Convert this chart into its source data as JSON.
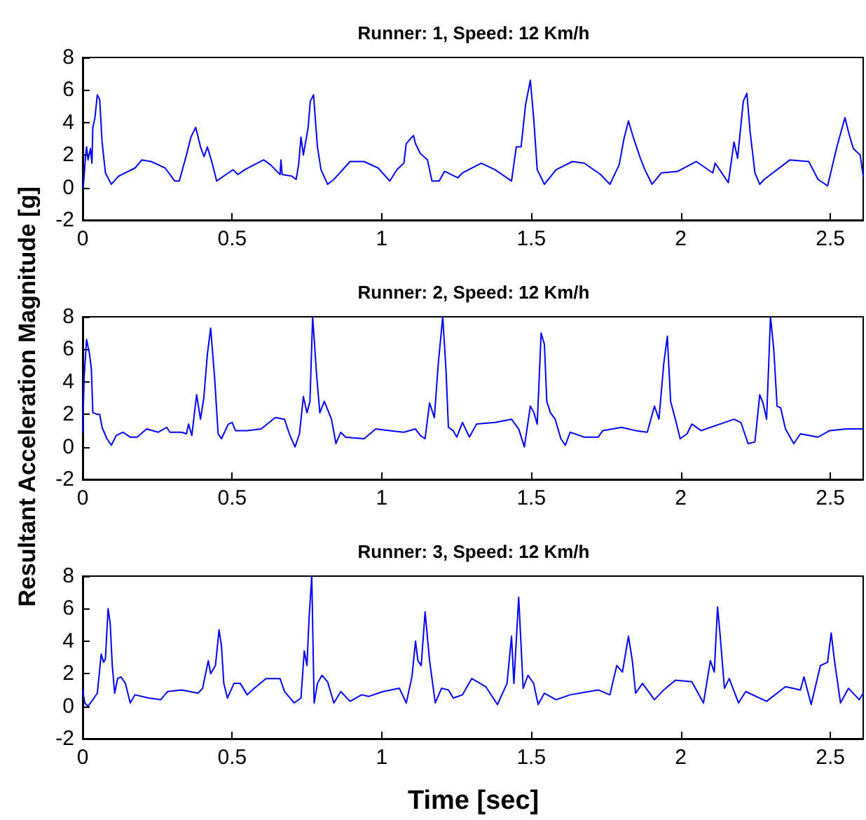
{
  "chart_data": [
    {
      "type": "line",
      "title": "Runner: 1, Speed: 12 Km/h",
      "ylabel": "Resultant Acceleration Magnitude [g]",
      "xlim": [
        0,
        2.61
      ],
      "xticks": [
        0,
        0.5,
        1,
        1.5,
        2,
        2.5
      ],
      "ylim": [
        -2,
        8
      ],
      "yticks": [
        -2,
        0,
        2,
        4,
        6,
        8
      ],
      "grid": false,
      "marker": "none",
      "line_style": "solid",
      "series": [
        {
          "color": "#0000ff",
          "x": [
            0.002,
            0.01,
            0.013,
            0.018,
            0.026,
            0.031,
            0.034,
            0.041,
            0.049,
            0.057,
            0.065,
            0.076,
            0.096,
            0.12,
            0.175,
            0.198,
            0.229,
            0.253,
            0.276,
            0.308,
            0.323,
            0.347,
            0.362,
            0.378,
            0.394,
            0.406,
            0.417,
            0.433,
            0.448,
            0.487,
            0.503,
            0.519,
            0.542,
            0.605,
            0.628,
            0.66,
            0.663,
            0.667,
            0.699,
            0.714,
            0.722,
            0.73,
            0.738,
            0.754,
            0.761,
            0.772,
            0.785,
            0.797,
            0.819,
            0.84,
            0.894,
            0.941,
            0.988,
            1.027,
            1.051,
            1.074,
            1.082,
            1.106,
            1.113,
            1.129,
            1.153,
            1.168,
            1.192,
            1.21,
            1.254,
            1.27,
            1.333,
            1.379,
            1.434,
            1.45,
            1.466,
            1.481,
            1.497,
            1.508,
            1.52,
            1.544,
            1.583,
            1.638,
            1.677,
            1.732,
            1.763,
            1.794,
            1.81,
            1.825,
            1.841,
            1.865,
            1.88,
            1.904,
            1.935,
            1.99,
            2.052,
            2.107,
            2.115,
            2.159,
            2.178,
            2.19,
            2.209,
            2.221,
            2.232,
            2.248,
            2.264,
            2.279,
            2.365,
            2.428,
            2.459,
            2.491,
            2.522,
            2.549,
            2.561,
            2.577,
            2.6,
            2.61
          ],
          "values": [
            0.0,
            2.0,
            2.5,
            1.7,
            2.4,
            1.5,
            3.7,
            4.3,
            5.7,
            5.4,
            2.8,
            0.9,
            0.2,
            0.7,
            1.2,
            1.7,
            1.6,
            1.4,
            1.2,
            0.4,
            0.4,
            2.0,
            3.1,
            3.7,
            2.5,
            1.9,
            2.5,
            1.5,
            0.4,
            0.9,
            1.1,
            0.8,
            1.1,
            1.7,
            1.4,
            0.8,
            1.7,
            0.8,
            0.7,
            0.5,
            1.4,
            3.1,
            2.0,
            3.7,
            5.3,
            5.7,
            2.5,
            1.1,
            0.2,
            0.5,
            1.6,
            1.6,
            1.2,
            0.4,
            1.1,
            1.5,
            2.7,
            3.2,
            2.7,
            2.1,
            1.7,
            0.4,
            0.4,
            1.0,
            0.6,
            0.9,
            1.5,
            1.1,
            0.4,
            2.5,
            2.5,
            5.1,
            6.6,
            4.3,
            1.1,
            0.2,
            1.1,
            1.6,
            1.5,
            0.8,
            0.2,
            1.4,
            3.0,
            4.1,
            3.1,
            1.8,
            1.1,
            0.2,
            0.9,
            1.0,
            1.6,
            0.9,
            1.5,
            0.3,
            2.8,
            1.8,
            5.3,
            5.8,
            3.4,
            0.9,
            0.2,
            0.5,
            1.7,
            1.6,
            0.5,
            0.1,
            2.5,
            4.3,
            3.4,
            2.4,
            2.0,
            0.7
          ]
        }
      ]
    },
    {
      "type": "line",
      "title": "Runner: 2, Speed: 12 Km/h",
      "xlim": [
        0,
        2.61
      ],
      "xticks": [
        0,
        0.5,
        1,
        1.5,
        2,
        2.5
      ],
      "ylim": [
        -2,
        8
      ],
      "yticks": [
        -2,
        0,
        2,
        4,
        6,
        8
      ],
      "grid": false,
      "marker": "none",
      "line_style": "solid",
      "series": [
        {
          "color": "#0000ff",
          "x": [
            0.0,
            0.005,
            0.013,
            0.023,
            0.029,
            0.034,
            0.049,
            0.057,
            0.065,
            0.081,
            0.096,
            0.112,
            0.135,
            0.159,
            0.182,
            0.214,
            0.253,
            0.281,
            0.292,
            0.331,
            0.347,
            0.354,
            0.365,
            0.381,
            0.394,
            0.405,
            0.417,
            0.428,
            0.441,
            0.453,
            0.464,
            0.487,
            0.5,
            0.511,
            0.55,
            0.597,
            0.644,
            0.675,
            0.691,
            0.71,
            0.725,
            0.738,
            0.75,
            0.76,
            0.769,
            0.782,
            0.793,
            0.808,
            0.832,
            0.847,
            0.863,
            0.879,
            0.941,
            0.98,
            1.027,
            1.074,
            1.113,
            1.129,
            1.145,
            1.16,
            1.176,
            1.189,
            1.204,
            1.215,
            1.223,
            1.239,
            1.251,
            1.27,
            1.293,
            1.317,
            1.379,
            1.434,
            1.458,
            1.477,
            1.497,
            1.509,
            1.52,
            1.533,
            1.544,
            1.552,
            1.564,
            1.58,
            1.599,
            1.614,
            1.63,
            1.677,
            1.724,
            1.739,
            1.802,
            1.849,
            1.888,
            1.912,
            1.927,
            1.943,
            1.955,
            1.966,
            1.982,
            1.998,
            2.021,
            2.037,
            2.068,
            2.131,
            2.178,
            2.201,
            2.225,
            2.248,
            2.264,
            2.275,
            2.287,
            2.3,
            2.311,
            2.322,
            2.334,
            2.35,
            2.378,
            2.4,
            2.459,
            2.498,
            2.553,
            2.61
          ],
          "values": [
            0.9,
            4.3,
            6.6,
            5.7,
            4.8,
            2.1,
            2.0,
            2.0,
            1.2,
            0.5,
            0.1,
            0.7,
            0.9,
            0.6,
            0.6,
            1.1,
            0.9,
            1.2,
            0.9,
            0.9,
            0.8,
            1.4,
            0.7,
            3.2,
            1.7,
            3.0,
            5.7,
            7.3,
            4.3,
            0.8,
            0.5,
            1.4,
            1.5,
            1.0,
            1.0,
            1.1,
            1.8,
            1.7,
            0.8,
            0.0,
            0.8,
            3.1,
            2.1,
            2.8,
            8.0,
            4.5,
            2.1,
            2.8,
            1.7,
            0.2,
            0.9,
            0.6,
            0.5,
            1.1,
            1.0,
            0.9,
            1.1,
            0.7,
            0.5,
            2.7,
            1.8,
            5.1,
            8.0,
            4.7,
            1.2,
            1.0,
            0.6,
            1.5,
            0.6,
            1.4,
            1.5,
            1.7,
            1.1,
            0.0,
            2.5,
            2.1,
            1.4,
            7.0,
            6.3,
            2.8,
            2.1,
            1.7,
            0.5,
            0.1,
            0.9,
            0.6,
            0.6,
            1.0,
            1.2,
            1.0,
            0.9,
            2.5,
            1.7,
            5.1,
            6.8,
            2.8,
            1.7,
            0.5,
            0.8,
            1.4,
            1.0,
            1.4,
            1.7,
            1.5,
            0.2,
            0.3,
            3.2,
            2.7,
            1.7,
            8.0,
            6.0,
            2.5,
            2.4,
            1.1,
            0.2,
            0.8,
            0.6,
            1.0,
            1.1,
            1.1
          ]
        }
      ]
    },
    {
      "type": "line",
      "title": "Runner: 3, Speed: 12 Km/h",
      "xlabel": "Time [sec]",
      "xlim": [
        0,
        2.61
      ],
      "xticks": [
        0,
        0.5,
        1,
        1.5,
        2,
        2.5
      ],
      "ylim": [
        -2,
        8
      ],
      "yticks": [
        -2,
        0,
        2,
        4,
        6,
        8
      ],
      "grid": false,
      "marker": "none",
      "line_style": "solid",
      "series": [
        {
          "color": "#0000ff",
          "x": [
            0.0,
            0.007,
            0.018,
            0.034,
            0.049,
            0.062,
            0.07,
            0.076,
            0.085,
            0.092,
            0.099,
            0.107,
            0.117,
            0.128,
            0.143,
            0.159,
            0.175,
            0.221,
            0.261,
            0.284,
            0.331,
            0.386,
            0.401,
            0.42,
            0.428,
            0.444,
            0.456,
            0.464,
            0.472,
            0.484,
            0.506,
            0.527,
            0.55,
            0.574,
            0.613,
            0.66,
            0.675,
            0.707,
            0.73,
            0.741,
            0.75,
            0.757,
            0.766,
            0.774,
            0.785,
            0.8,
            0.819,
            0.84,
            0.863,
            0.894,
            0.933,
            0.957,
            1.004,
            1.059,
            1.082,
            1.101,
            1.113,
            1.121,
            1.132,
            1.145,
            1.16,
            1.179,
            1.2,
            1.223,
            1.239,
            1.27,
            1.301,
            1.348,
            1.387,
            1.419,
            1.434,
            1.442,
            1.458,
            1.473,
            1.489,
            1.508,
            1.523,
            1.544,
            1.583,
            1.63,
            1.692,
            1.724,
            1.763,
            1.786,
            1.805,
            1.825,
            1.838,
            1.849,
            1.872,
            1.912,
            1.943,
            1.982,
            2.037,
            2.076,
            2.099,
            2.112,
            2.123,
            2.131,
            2.146,
            2.162,
            2.193,
            2.217,
            2.287,
            2.35,
            2.4,
            2.412,
            2.436,
            2.467,
            2.491,
            2.503,
            2.514,
            2.534,
            2.561,
            2.597,
            2.61
          ],
          "values": [
            1.0,
            0.2,
            0.0,
            0.4,
            0.8,
            3.2,
            2.7,
            2.9,
            6.0,
            5.1,
            2.5,
            0.8,
            1.7,
            1.8,
            1.4,
            0.2,
            0.7,
            0.5,
            0.4,
            0.9,
            1.0,
            0.8,
            1.1,
            2.8,
            2.0,
            2.5,
            4.7,
            3.7,
            1.4,
            0.5,
            1.4,
            1.4,
            0.7,
            1.1,
            1.7,
            1.7,
            0.9,
            0.2,
            0.5,
            3.4,
            2.5,
            5.4,
            8.0,
            0.2,
            1.4,
            1.9,
            1.5,
            0.2,
            0.9,
            0.3,
            0.7,
            0.6,
            0.9,
            1.1,
            0.2,
            1.8,
            4.0,
            2.8,
            2.5,
            5.8,
            2.8,
            0.2,
            1.1,
            1.0,
            0.5,
            0.7,
            1.7,
            1.2,
            0.1,
            1.4,
            4.3,
            1.4,
            6.7,
            1.1,
            1.9,
            1.4,
            0.1,
            0.8,
            0.4,
            0.7,
            0.9,
            1.0,
            0.7,
            2.5,
            2.1,
            4.3,
            2.8,
            0.8,
            1.4,
            0.4,
            1.0,
            1.6,
            1.5,
            0.2,
            2.8,
            2.1,
            6.1,
            4.5,
            1.1,
            1.7,
            0.2,
            0.9,
            0.3,
            1.2,
            1.0,
            1.8,
            0.1,
            2.5,
            2.7,
            4.5,
            2.8,
            0.2,
            1.1,
            0.4,
            0.8
          ]
        }
      ]
    }
  ]
}
